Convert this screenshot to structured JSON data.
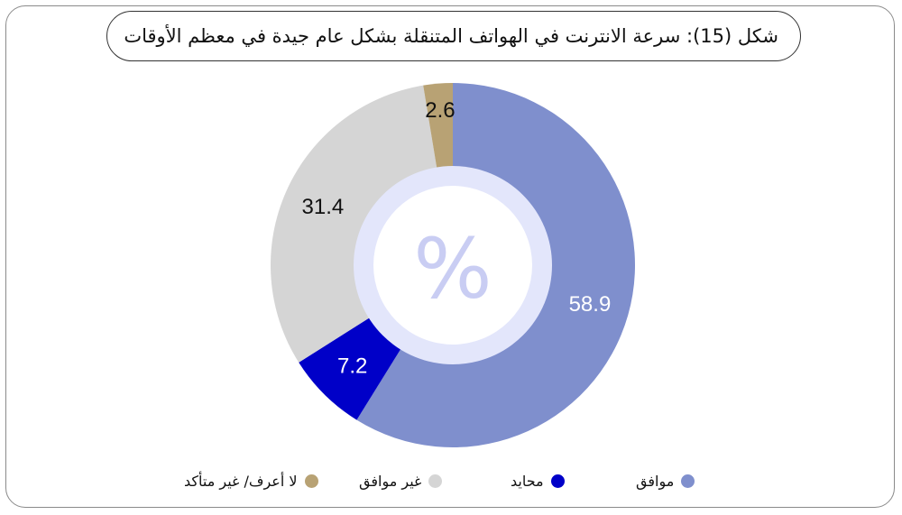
{
  "title": "شكل (15): سرعة الانترنت في الهواتف المتنقلة بشكل عام جيدة في معظم الأوقات",
  "center_symbol": "%",
  "colors": {
    "agree": "#7f8fcd",
    "neutral": "#0000c8",
    "disagree": "#d5d5d5",
    "dont_know": "#b8a274",
    "ring": "#e3e6fb",
    "center_text": "#c9cdf3"
  },
  "chart_data": {
    "type": "pie",
    "variant": "donut",
    "categories": [
      "موافق",
      "محايد",
      "غير موافق",
      "لا أعرف/ غير متأكد"
    ],
    "values": [
      58.9,
      7.2,
      31.4,
      2.6
    ],
    "data_labels": [
      "58.9",
      "7.2",
      "31.4",
      "2.6"
    ],
    "legend_position": "bottom",
    "start": "top",
    "direction": "clockwise"
  }
}
